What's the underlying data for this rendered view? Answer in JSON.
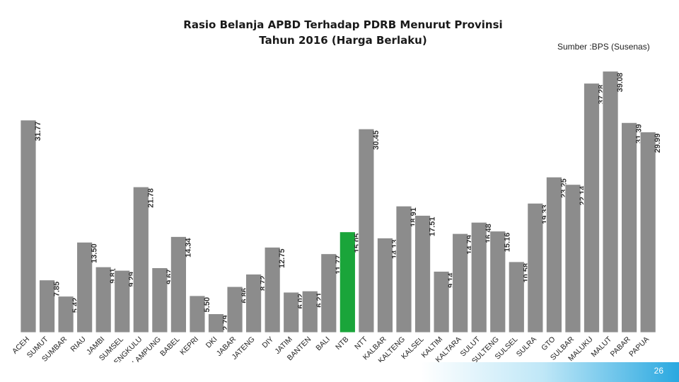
{
  "title_line1": "Rasio Belanja APBD Terhadap PDRB Menurut Provinsi",
  "title_line2": "Tahun 2016 (Harga Berlaku)",
  "source": "Sumber :BPS (Susenas)",
  "page_number": "26",
  "colors": {
    "bar": "#8c8c8c",
    "bar_border": "#ffffff",
    "highlight": "#1aa53a",
    "page_accent": "#29a8e0"
  },
  "chart_data": {
    "type": "bar",
    "title": "Rasio Belanja APBD Terhadap PDRB Menurut Provinsi Tahun 2016 (Harga Berlaku)",
    "categories": [
      "ACEH",
      "SUMUT",
      "SUMBAR",
      "RIAU",
      "JAMBI",
      "SUMSEL",
      "BENGKULU",
      "LAMPUNG",
      "BABEL",
      "KEPRI",
      "DKI",
      "JABAR",
      "JATENG",
      "DIY",
      "JATIM",
      "BANTEN",
      "BALI",
      "NTB",
      "NTT",
      "KALBAR",
      "KALTENG",
      "KALSEL",
      "KALTIM",
      "KALTARA",
      "SULUT",
      "SULTENG",
      "SULSEL",
      "SULRA",
      "GTO",
      "SULBAR",
      "MALUKU",
      "MALUT",
      "PABAR",
      "PAPUA"
    ],
    "values": [
      31.77,
      7.85,
      5.42,
      13.5,
      9.81,
      9.29,
      21.78,
      9.67,
      14.34,
      5.5,
      2.79,
      6.86,
      8.72,
      12.75,
      6.02,
      6.21,
      11.77,
      15.05,
      30.45,
      14.13,
      18.91,
      17.51,
      9.14,
      14.79,
      16.48,
      15.16,
      10.58,
      19.33,
      23.25,
      22.14,
      37.28,
      39.08,
      31.39,
      29.99
    ],
    "value_labels": [
      "31.77",
      "7.85",
      "5.42",
      "13.50",
      "9.81",
      "9.29",
      "21.78",
      "9.67",
      "14.34",
      "5.50",
      "2.79",
      "6.86",
      "8.72",
      "12.75",
      "6.02",
      "6.21",
      "11.77",
      "15.05",
      "30.45",
      "14.13",
      "18.91",
      "17.51",
      "9.14",
      "14.79",
      "16.48",
      "15.16",
      "10.58",
      "19.33",
      "23.25",
      "22.14",
      "37.28",
      "39.08",
      "31.39",
      "29.99"
    ],
    "highlight_index": 17,
    "ylim": [
      0,
      40
    ],
    "grid": false,
    "legend": "none",
    "value_label_orientation": "vertical"
  }
}
